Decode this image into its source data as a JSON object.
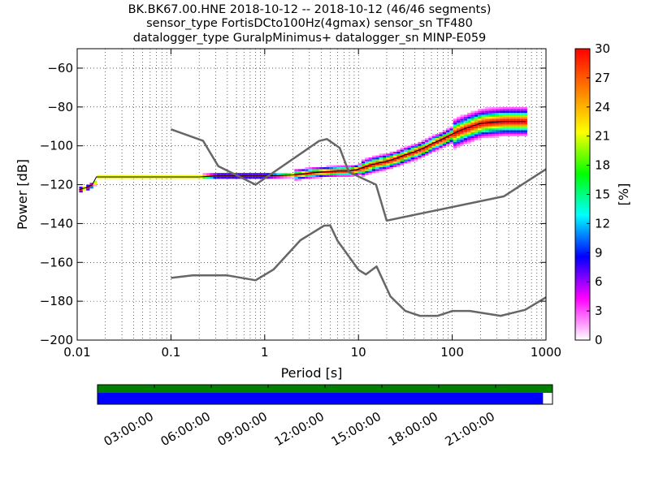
{
  "title_lines": [
    "BK.BK67.00.HNE   2018-10-12 -- 2018-10-12  (46/46 segments)",
    "sensor_type FortisDCto100Hz(4gmax) sensor_sn TF480",
    "datalogger_type GuralpMinimus+ datalogger_sn MINP-E059"
  ],
  "chart_data": [
    {
      "type": "heatmap",
      "title": "",
      "xlabel": "Period [s]",
      "ylabel": "Power [dB]",
      "x_scale": "log",
      "xlim": [
        0.01,
        1000
      ],
      "ylim": [
        -200,
        -50
      ],
      "x_ticks": [
        0.01,
        0.1,
        1,
        10,
        100,
        1000
      ],
      "x_tick_labels": [
        "0.01",
        "0.1",
        "1",
        "10",
        "100",
        "1000"
      ],
      "y_ticks": [
        -200,
        -180,
        -160,
        -140,
        -120,
        -100,
        -80,
        -60
      ],
      "y_tick_labels": [
        "−200",
        "−180",
        "−160",
        "−140",
        "−120",
        "−100",
        "−80",
        "−60"
      ],
      "grid": true,
      "colorbar": {
        "label": "[%]",
        "range": [
          0,
          30
        ],
        "ticks": [
          0,
          3,
          6,
          9,
          12,
          15,
          18,
          21,
          24,
          27,
          30
        ],
        "tick_labels": [
          "0",
          "3",
          "6",
          "9",
          "12",
          "15",
          "18",
          "21",
          "24",
          "27",
          "30"
        ],
        "colormap": [
          "#ffffff",
          "#ff00ff",
          "#0000ff",
          "#00ffff",
          "#00ff00",
          "#ffff00",
          "#ff8000",
          "#ff0000"
        ]
      },
      "ppsd_mode_curve": [
        [
          0.0105,
          -122.5
        ],
        [
          0.0125,
          -121.5
        ],
        [
          0.0145,
          -120
        ],
        [
          0.016,
          -116
        ],
        [
          0.02,
          -116
        ],
        [
          0.05,
          -116
        ],
        [
          0.1,
          -116
        ],
        [
          0.2,
          -116
        ],
        [
          0.3,
          -115.5
        ],
        [
          0.6,
          -115.5
        ],
        [
          1,
          -115.5
        ],
        [
          2,
          -115
        ],
        [
          3,
          -114
        ],
        [
          4,
          -113.5
        ],
        [
          6,
          -113
        ],
        [
          8,
          -113
        ],
        [
          10,
          -112
        ],
        [
          13,
          -110
        ],
        [
          16,
          -109
        ],
        [
          20,
          -108
        ],
        [
          25,
          -106.5
        ],
        [
          30,
          -105
        ],
        [
          40,
          -103
        ],
        [
          50,
          -101
        ],
        [
          60,
          -99
        ],
        [
          75,
          -97
        ],
        [
          90,
          -95
        ],
        [
          110,
          -93
        ],
        [
          130,
          -91.5
        ],
        [
          160,
          -90
        ],
        [
          200,
          -88.5
        ],
        [
          250,
          -88
        ],
        [
          350,
          -87.5
        ],
        [
          450,
          -87.5
        ],
        [
          600,
          -87.5
        ]
      ],
      "spread_at_long_period": [
        [
          200,
          -92,
          -85
        ],
        [
          300,
          -93,
          -84
        ],
        [
          400,
          -93,
          -84
        ],
        [
          600,
          -92,
          -84
        ]
      ],
      "noise_model_high": [
        [
          0.1,
          -91.5
        ],
        [
          0.22,
          -97.4
        ],
        [
          0.32,
          -110.5
        ],
        [
          0.8,
          -120
        ],
        [
          3.8,
          -97.5
        ],
        [
          4.6,
          -96.5
        ],
        [
          6.3,
          -101
        ],
        [
          7.9,
          -113.5
        ],
        [
          15.4,
          -120
        ],
        [
          20,
          -138.5
        ],
        [
          354.8,
          -126
        ],
        [
          1000,
          -112
        ]
      ],
      "noise_model_low": [
        [
          0.1,
          -168
        ],
        [
          0.17,
          -166.7
        ],
        [
          0.4,
          -166.7
        ],
        [
          0.8,
          -169.2
        ],
        [
          1.24,
          -163.7
        ],
        [
          2.4,
          -148.6
        ],
        [
          4.3,
          -141.1
        ],
        [
          5,
          -141
        ],
        [
          6,
          -149
        ],
        [
          10,
          -163.8
        ],
        [
          12,
          -166.2
        ],
        [
          15.6,
          -162.1
        ],
        [
          21.9,
          -177.5
        ],
        [
          31.6,
          -185
        ],
        [
          45,
          -187.5
        ],
        [
          70,
          -187.5
        ],
        [
          101,
          -185
        ],
        [
          154,
          -185
        ],
        [
          328,
          -187.5
        ],
        [
          600,
          -184.4
        ],
        [
          1000,
          -178
        ]
      ]
    },
    {
      "type": "bar",
      "title": "",
      "x_tick_labels": [
        "03:00:00",
        "06:00:00",
        "09:00:00",
        "12:00:00",
        "15:00:00",
        "18:00:00",
        "21:00:00"
      ],
      "x_ticks_hours": [
        3,
        6,
        9,
        12,
        15,
        18,
        21
      ],
      "xlim_hours": [
        0,
        24
      ],
      "series": [
        {
          "segments": [
            [
              0,
              24
            ]
          ],
          "color": "#008000"
        },
        {
          "segments": [
            [
              0,
              23.5
            ]
          ],
          "color": "#0000ff"
        }
      ]
    }
  ]
}
